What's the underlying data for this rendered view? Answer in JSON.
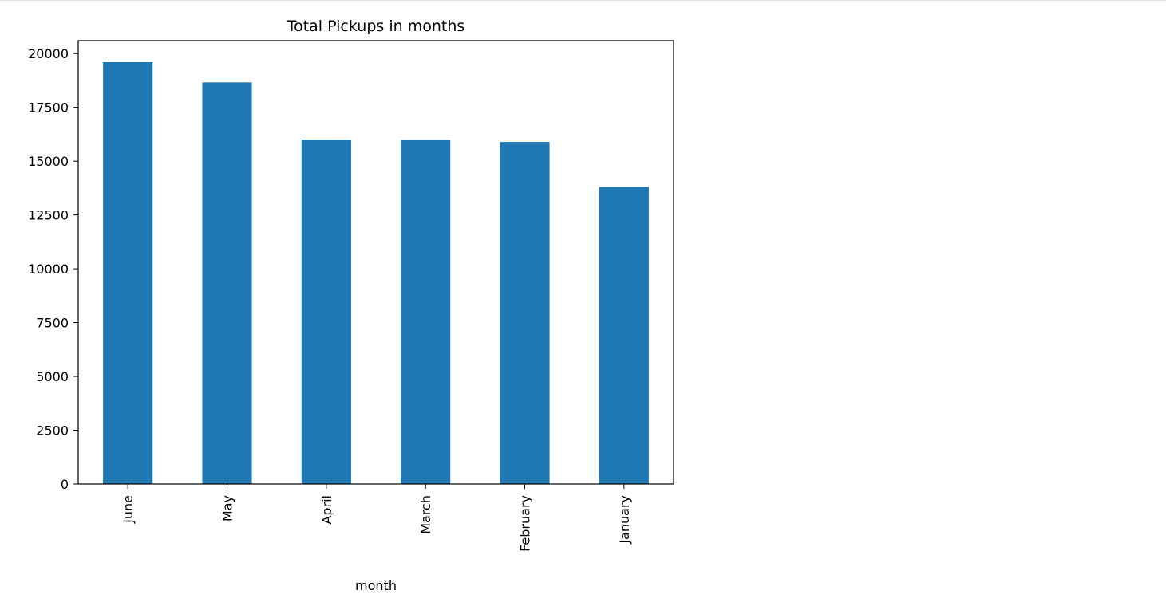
{
  "chart_data": {
    "type": "bar",
    "title": "Total Pickups in months",
    "xlabel": "month",
    "ylabel": "",
    "categories": [
      "June",
      "May",
      "April",
      "March",
      "February",
      "January"
    ],
    "values": [
      19600,
      18660,
      16000,
      15980,
      15890,
      13800
    ],
    "ylim": [
      0,
      20600
    ],
    "yticks": [
      0,
      2500,
      5000,
      7500,
      10000,
      12500,
      15000,
      17500,
      20000
    ],
    "ytick_labels": [
      "0",
      "2500",
      "5000",
      "7500",
      "10000",
      "12500",
      "15000",
      "17500",
      "20000"
    ],
    "bar_color": "#1f77b4",
    "grid": false,
    "legend": "none"
  }
}
